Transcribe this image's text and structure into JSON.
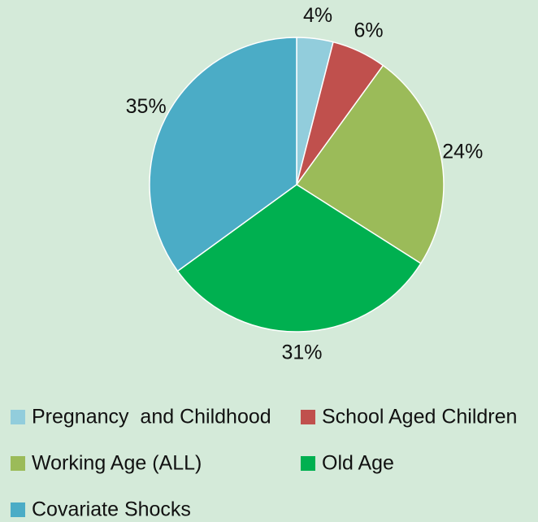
{
  "chart_data": {
    "type": "pie",
    "categories": [
      "Pregnancy  and Childhood",
      "School Aged Children",
      "Working Age (ALL)",
      "Old Age",
      "Covariate Shocks"
    ],
    "values": [
      4,
      6,
      24,
      31,
      35
    ],
    "value_labels": [
      "4%",
      "6%",
      "24%",
      "31%",
      "35%"
    ],
    "colors": [
      "#92cddc",
      "#c0504d",
      "#9bbb59",
      "#00b050",
      "#4bacc6"
    ]
  }
}
